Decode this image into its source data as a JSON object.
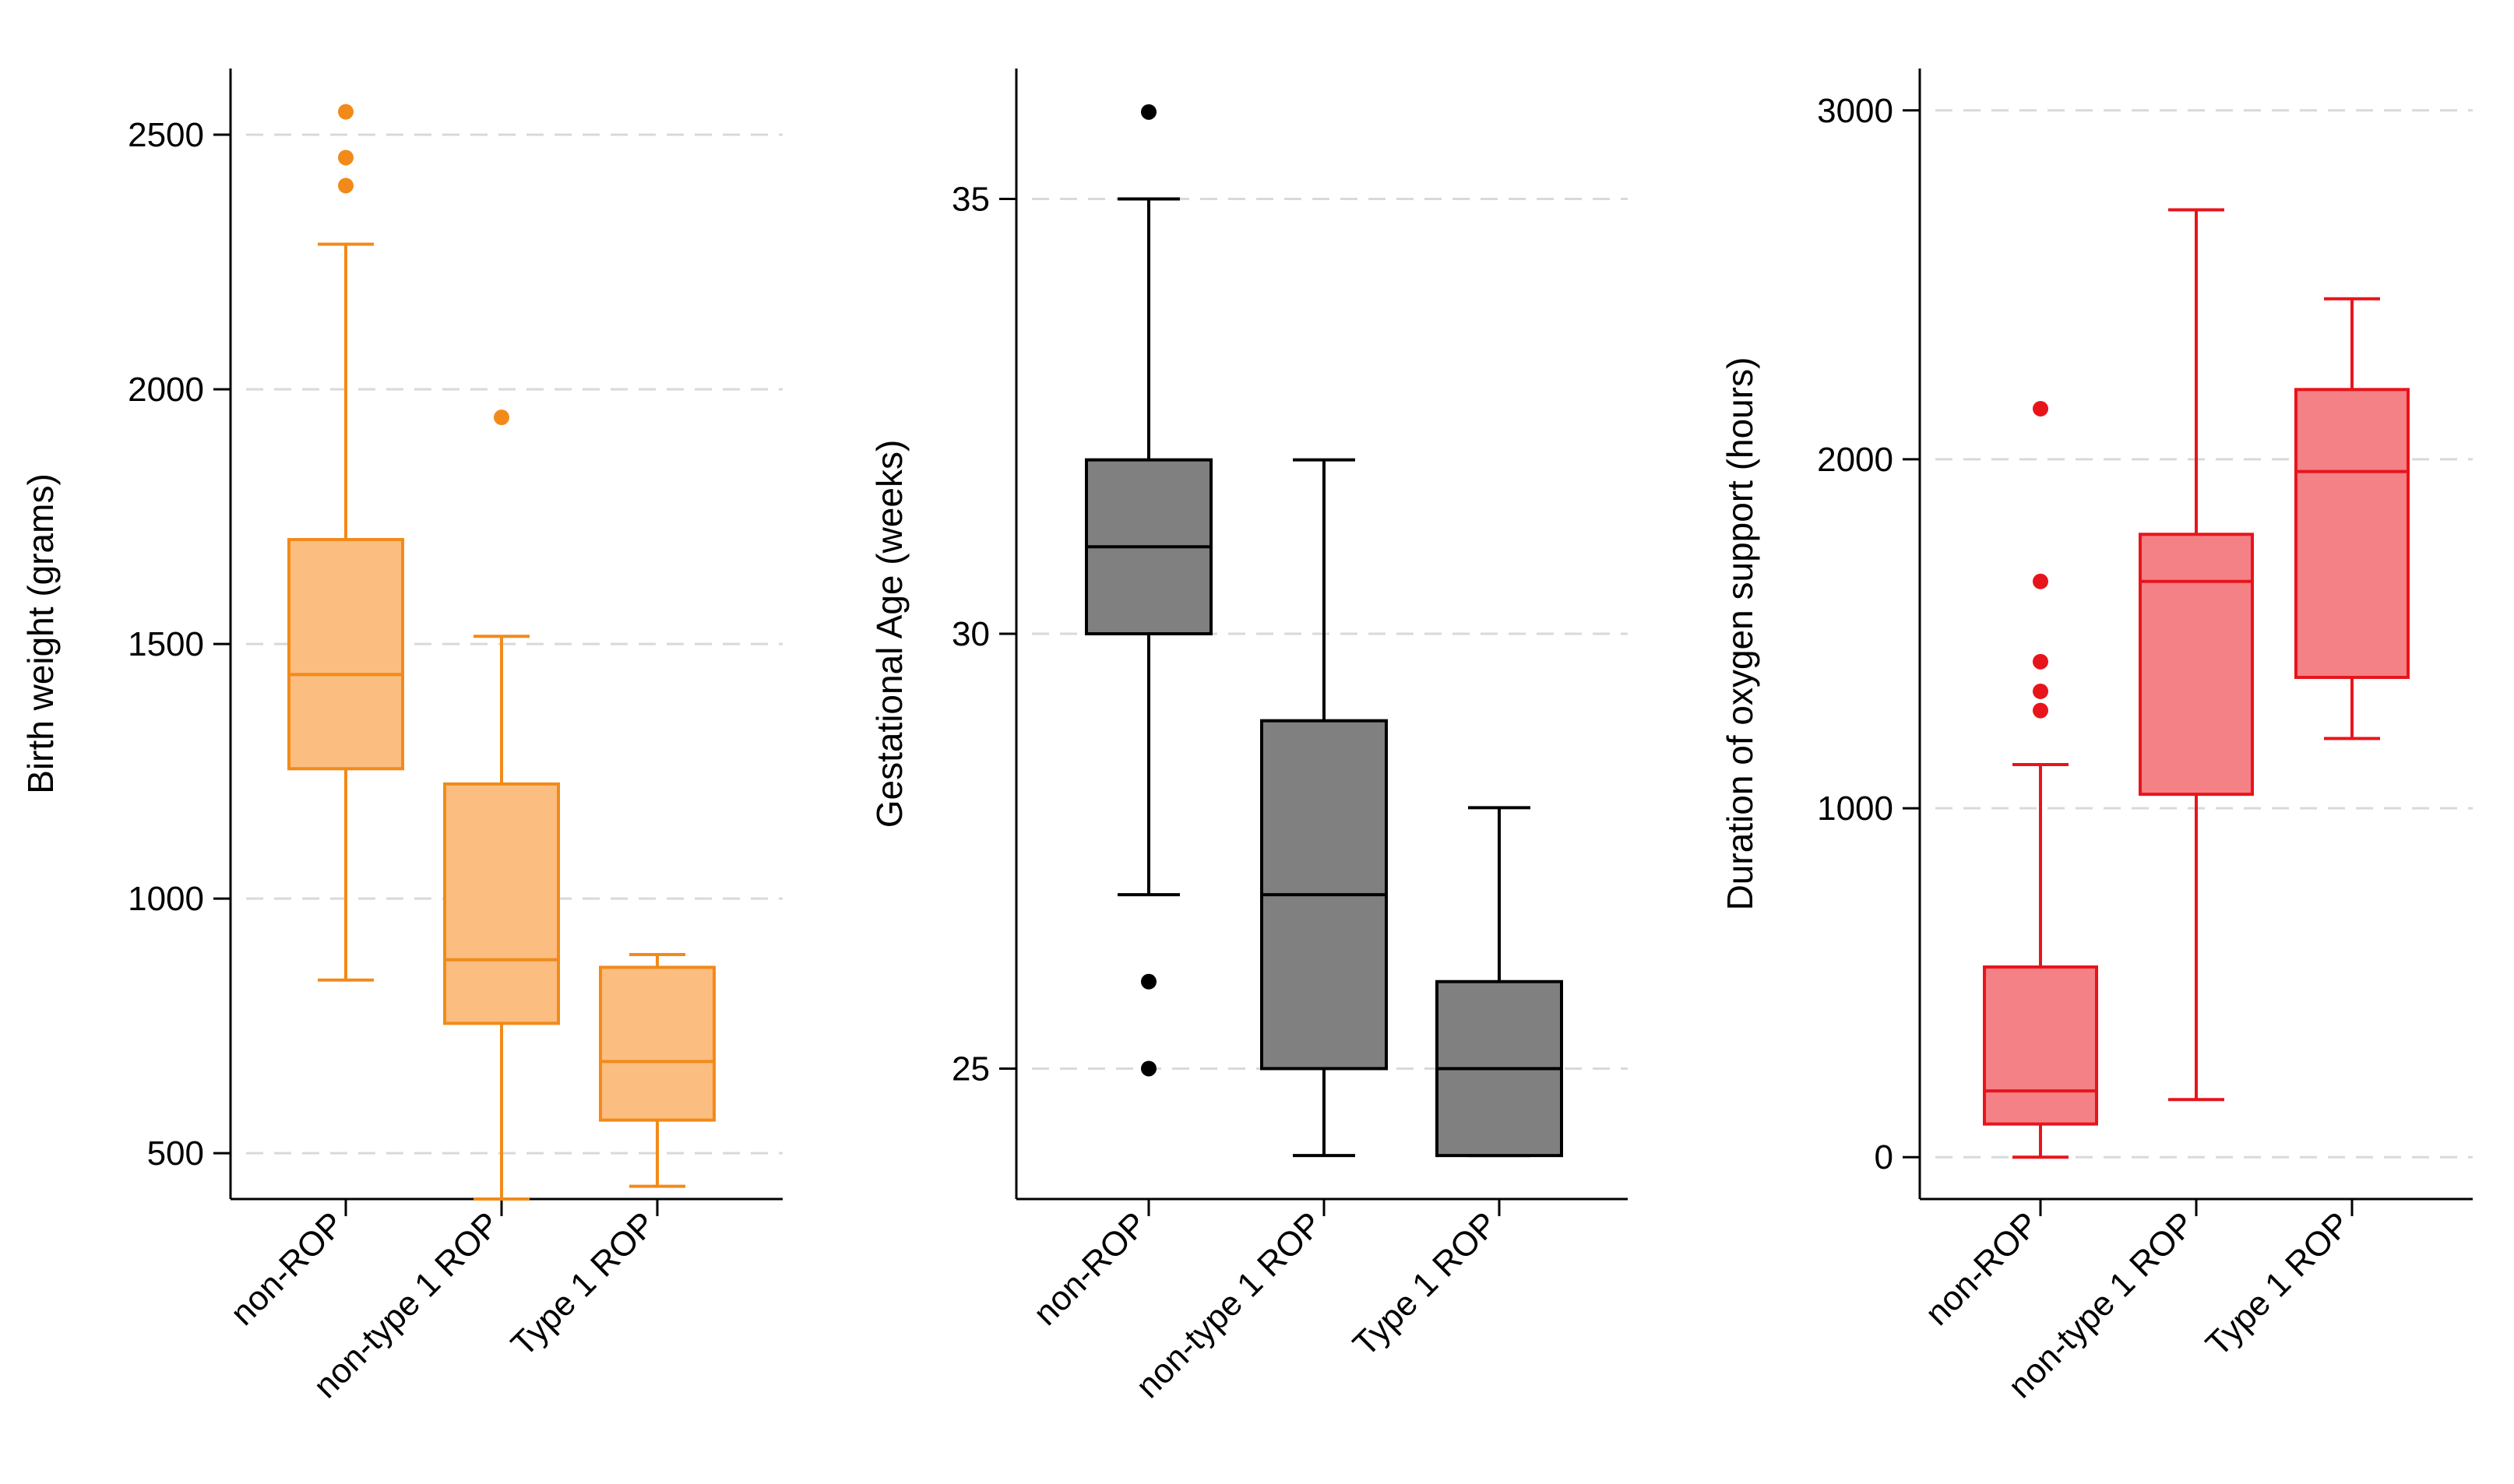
{
  "chart_data": [
    {
      "type": "box",
      "title": "",
      "xlabel": "",
      "ylabel": "Birth weight (grams)",
      "ylim": [
        410,
        2630
      ],
      "yticks": [
        500,
        1000,
        1500,
        2000,
        2500
      ],
      "ytick_labels": [
        "500",
        "1000",
        "1500",
        "2000",
        "2500"
      ],
      "grid": "horizontal-dashed",
      "color": "#F28A1A",
      "fill": "#FBBE80",
      "median_color": "#F28A1A",
      "outlier_color": "#F28A1A",
      "categories": [
        "non-ROP",
        "non-type 1 ROP",
        "Type 1 ROP"
      ],
      "boxes": [
        {
          "min": 840,
          "q1": 1255,
          "median": 1440,
          "q3": 1705,
          "max": 2285,
          "outliers": [
            2400,
            2455,
            2545
          ]
        },
        {
          "min": 410,
          "q1": 755,
          "median": 880,
          "q3": 1225,
          "max": 1515,
          "outliers": [
            1945
          ]
        },
        {
          "min": 435,
          "q1": 565,
          "median": 680,
          "q3": 865,
          "max": 890,
          "outliers": []
        }
      ]
    },
    {
      "type": "box",
      "title": "",
      "xlabel": "",
      "ylabel": "Gestational Age (weeks)",
      "ylim": [
        23.5,
        36.5
      ],
      "yticks": [
        25,
        30,
        35
      ],
      "ytick_labels": [
        "25",
        "30",
        "35"
      ],
      "grid": "horizontal-dashed",
      "color": "#000000",
      "fill": "#808080",
      "median_color": "#000000",
      "outlier_color": "#000000",
      "categories": [
        "non-ROP",
        "non-type 1 ROP",
        "Type 1 ROP"
      ],
      "boxes": [
        {
          "min": 27,
          "q1": 30,
          "median": 31,
          "q3": 32,
          "max": 35,
          "outliers": [
            26,
            25,
            36
          ]
        },
        {
          "min": 24,
          "q1": 25,
          "median": 27,
          "q3": 29,
          "max": 32,
          "outliers": []
        },
        {
          "min": 24,
          "q1": 24,
          "median": 25,
          "q3": 26,
          "max": 28,
          "outliers": []
        }
      ]
    },
    {
      "type": "box",
      "title": "",
      "xlabel": "",
      "ylabel": "Duration of oxygen support (hours)",
      "ylim": [
        -120,
        3120
      ],
      "yticks": [
        0,
        1000,
        2000,
        3000
      ],
      "ytick_labels": [
        "0",
        "1000",
        "2000",
        "3000"
      ],
      "grid": "horizontal-dashed",
      "color": "#E8141C",
      "fill": "#F48185",
      "median_color": "#E8141C",
      "outlier_color": "#E8141C",
      "categories": [
        "non-ROP",
        "non-type 1 ROP",
        "Type 1 ROP"
      ],
      "boxes": [
        {
          "min": 0,
          "q1": 95,
          "median": 190,
          "q3": 545,
          "max": 1125,
          "outliers": [
            1280,
            1335,
            1420,
            1650,
            2145
          ]
        },
        {
          "min": 165,
          "q1": 1040,
          "median": 1650,
          "q3": 1785,
          "max": 2715,
          "outliers": []
        },
        {
          "min": 1200,
          "q1": 1375,
          "median": 1965,
          "q3": 2200,
          "max": 2460,
          "outliers": []
        }
      ]
    }
  ]
}
